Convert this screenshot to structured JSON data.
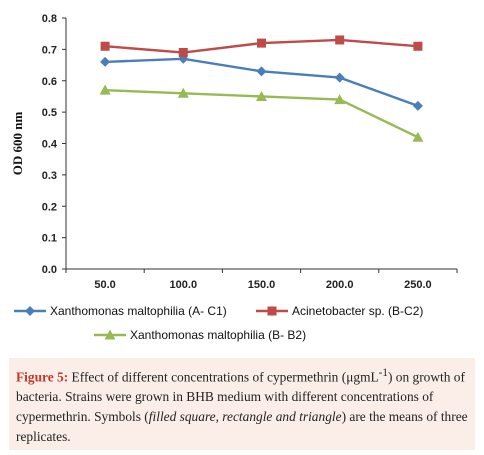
{
  "chart_data": {
    "type": "line",
    "categories": [
      "50.0",
      "100.0",
      "150.0",
      "200.0",
      "250.0"
    ],
    "ylabel": "OD 600 nm",
    "ylim": [
      0,
      0.8
    ],
    "yticks": [
      "0.0",
      "0.1",
      "0.2",
      "0.3",
      "0.4",
      "0.5",
      "0.6",
      "0.7",
      "0.8"
    ],
    "grid": false,
    "legend_position": "bottom",
    "series": [
      {
        "name": "Xanthomonas maltophilia (A- C1)",
        "marker": "diamond",
        "color": "#4a7ebb",
        "values": [
          0.66,
          0.67,
          0.63,
          0.61,
          0.52
        ]
      },
      {
        "name": "Acinetobacter sp. (B-C2)",
        "marker": "square",
        "color": "#be4b48",
        "values": [
          0.71,
          0.69,
          0.72,
          0.73,
          0.71
        ]
      },
      {
        "name": "Xanthomonas maltophilia (B- B2)",
        "marker": "triangle",
        "color": "#98b954",
        "values": [
          0.57,
          0.56,
          0.55,
          0.54,
          0.42
        ]
      }
    ]
  },
  "caption": {
    "label": "Figure 5:",
    "text1": " Effect of different concentrations of cypermethrin (μgmL",
    "sup": "-1",
    "text2": ") on growth of bacteria. Strains were grown in BHB medium with different concentrations of cypermethrin. Symbols (",
    "italic": "filled square, rectangle and triangle",
    "text3": ") are the means of three replicates."
  }
}
